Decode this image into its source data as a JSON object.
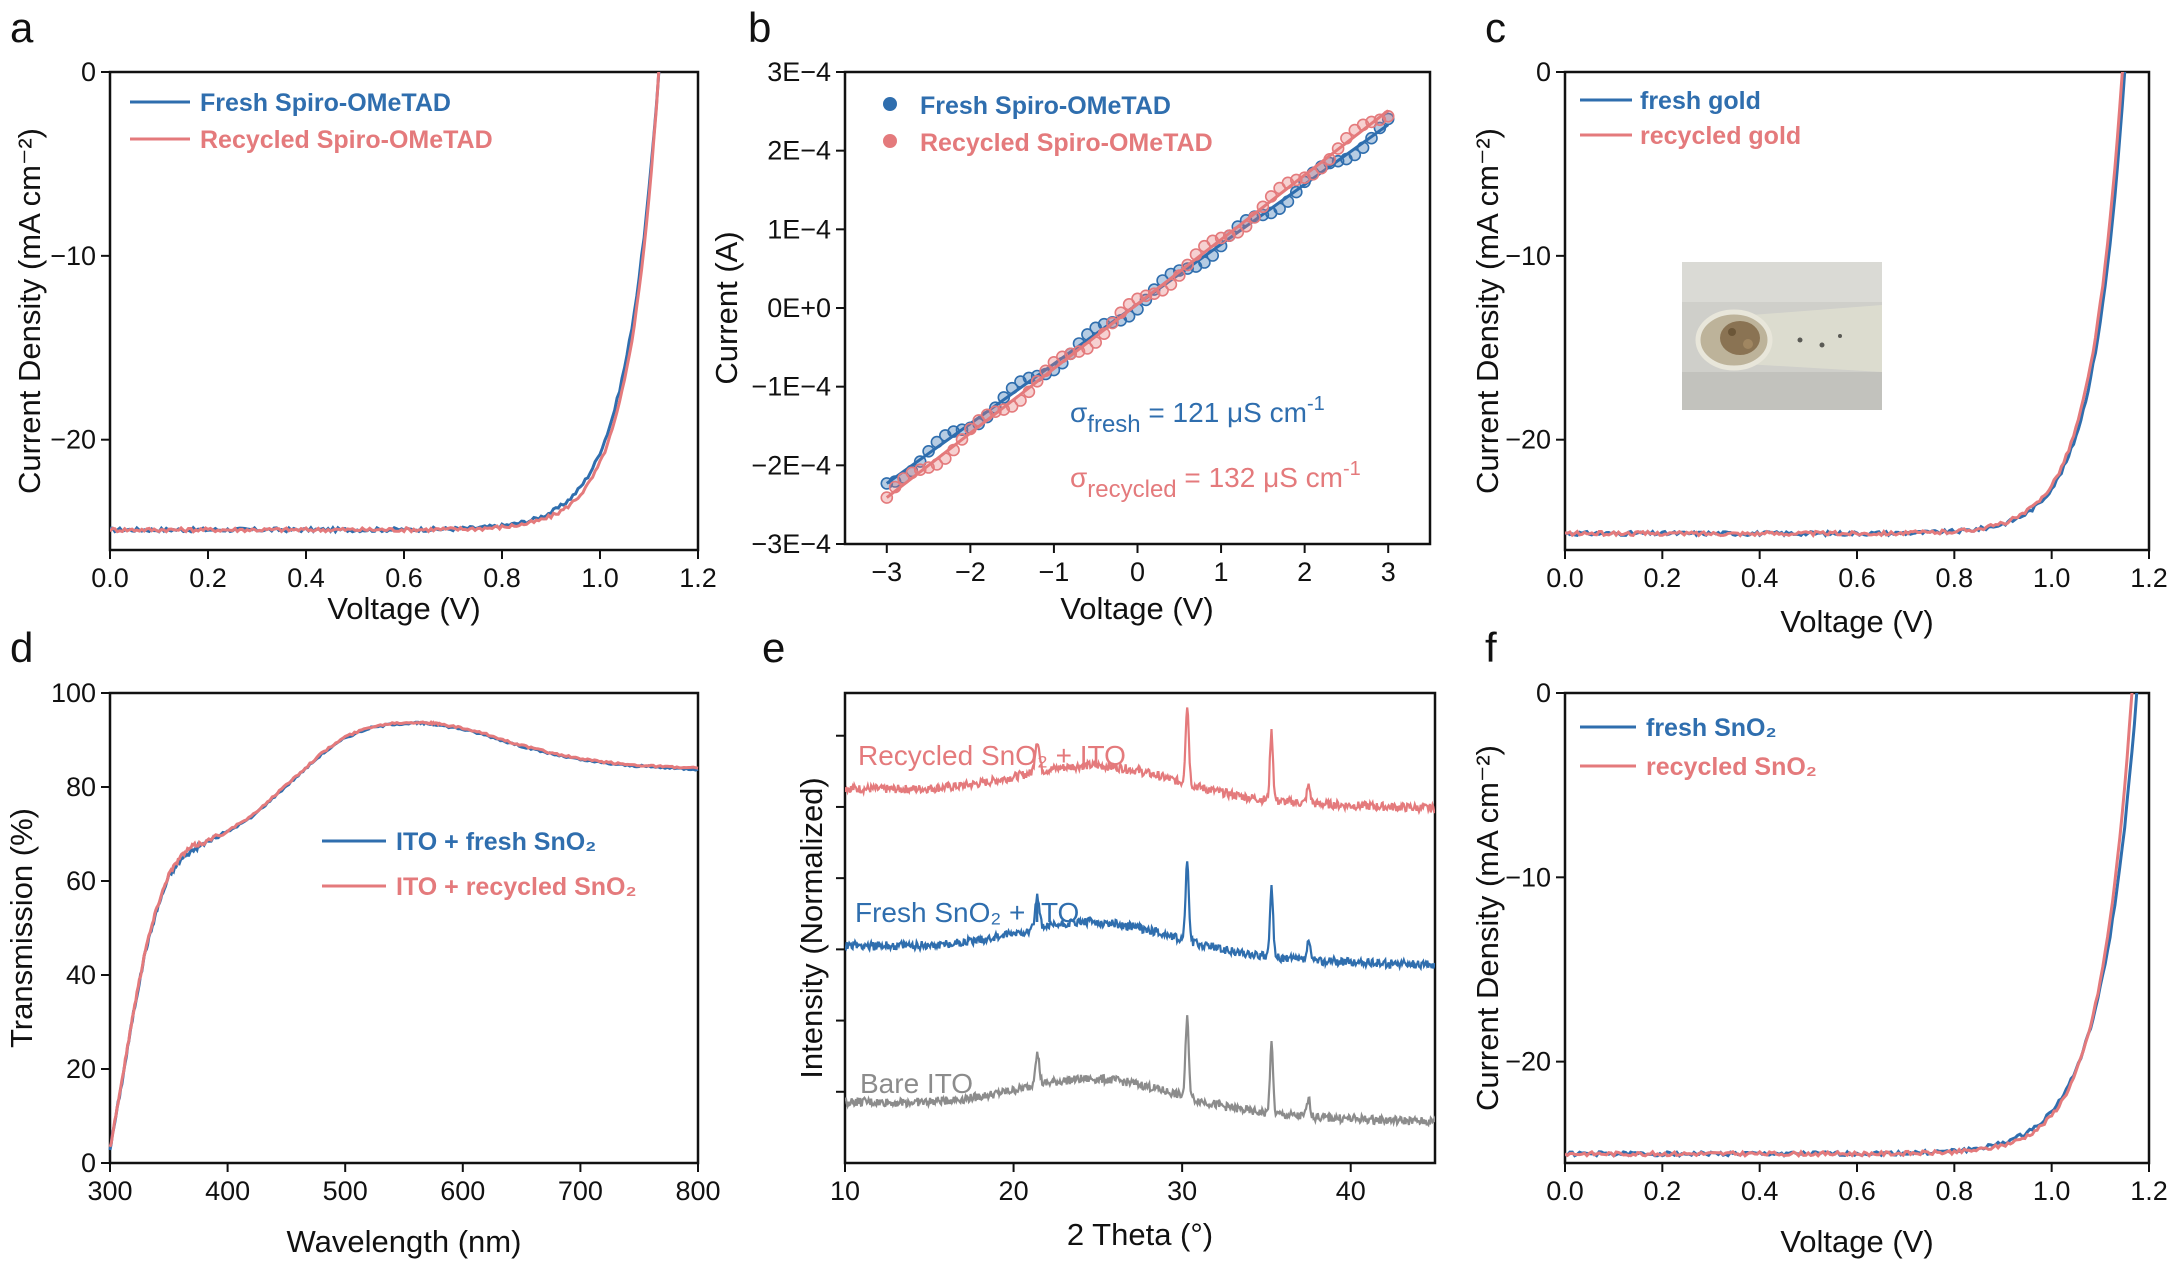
{
  "colors": {
    "fresh": "#2f6eae",
    "recycled": "#e47a7c",
    "bare": "#8c8c8c",
    "axis": "#111111"
  },
  "chart_data": [
    {
      "panel": "a",
      "type": "line",
      "xlabel": "Voltage (V)",
      "ylabel": "Current Density (mA cm⁻²)",
      "xlim": [
        0,
        1.2
      ],
      "ylim": [
        -26,
        0
      ],
      "xticks": [
        0.0,
        0.2,
        0.4,
        0.6,
        0.8,
        1.0,
        1.2
      ],
      "xtick_labels": [
        "0.0",
        "0.2",
        "0.4",
        "0.6",
        "0.8",
        "1.0",
        "1.2"
      ],
      "yticks": [
        0,
        -10,
        -20
      ],
      "ytick_labels": [
        "0",
        "−10",
        "−20"
      ],
      "legend": "top-left",
      "series": [
        {
          "name": "Fresh Spiro-OMeTAD",
          "color": "fresh",
          "jsc": 24.9,
          "voc": 1.12,
          "v0": 0.0675
        },
        {
          "name": "Recycled Spiro-OMeTAD",
          "color": "recycled",
          "jsc": 24.9,
          "voc": 1.12,
          "v0": 0.0625
        }
      ]
    },
    {
      "panel": "b",
      "type": "scatter",
      "xlabel": "Voltage (V)",
      "ylabel": "Current (A)",
      "xlim": [
        -3.5,
        3.5
      ],
      "ylim": [
        -0.0003,
        0.0003
      ],
      "xticks": [
        -3,
        -2,
        -1,
        0,
        1,
        2,
        3
      ],
      "xtick_labels": [
        "−3",
        "−2",
        "−1",
        "0",
        "1",
        "2",
        "3"
      ],
      "yticks": [
        0.0003,
        0.0002,
        0.0001,
        0,
        -0.0001,
        -0.0002,
        -0.0003
      ],
      "ytick_labels": [
        "3E−4",
        "2E−4",
        "1E−4",
        "0E+0",
        "−1E−4",
        "−2E−4",
        "−3E−4"
      ],
      "legend": "top-left",
      "series": [
        {
          "name": "Fresh Spiro-OMeTAD",
          "color": "fresh",
          "slope": 7.6e-05,
          "intercept": 5e-06
        },
        {
          "name": "Recycled Spiro-OMeTAD",
          "color": "recycled",
          "slope": 8.2e-05,
          "intercept": 5e-06
        }
      ],
      "annotations": [
        {
          "symbol": "σ",
          "sub": "fresh",
          "text": " = 121 μS cm",
          "sup": "-1",
          "color": "fresh"
        },
        {
          "symbol": "σ",
          "sub": "recycled",
          "text": " = 132 μS cm",
          "sup": "-1",
          "color": "recycled"
        }
      ]
    },
    {
      "panel": "c",
      "type": "line",
      "xlabel": "Voltage (V)",
      "ylabel": "Current Density (mA cm⁻²)",
      "xlim": [
        0,
        1.2
      ],
      "ylim": [
        -26,
        0
      ],
      "xticks": [
        0.0,
        0.2,
        0.4,
        0.6,
        0.8,
        1.0,
        1.2
      ],
      "xtick_labels": [
        "0.0",
        "0.2",
        "0.4",
        "0.6",
        "0.8",
        "1.0",
        "1.2"
      ],
      "yticks": [
        0,
        -10,
        -20
      ],
      "ytick_labels": [
        "0",
        "−10",
        "−20"
      ],
      "legend": "top-left",
      "inset": "photo of recycled gold flakes in a vial",
      "series": [
        {
          "name": "fresh gold",
          "color": "fresh",
          "jsc": 25.1,
          "voc": 1.15,
          "v0": 0.0645
        },
        {
          "name": "recycled gold",
          "color": "recycled",
          "jsc": 25.1,
          "voc": 1.145,
          "v0": 0.0645
        }
      ]
    },
    {
      "panel": "d",
      "type": "line",
      "xlabel": "Wavelength (nm)",
      "ylabel": "Transmission (%)",
      "xlim": [
        300,
        800
      ],
      "ylim": [
        0,
        100
      ],
      "xticks": [
        300,
        400,
        500,
        600,
        700,
        800
      ],
      "xtick_labels": [
        "300",
        "400",
        "500",
        "600",
        "700",
        "800"
      ],
      "yticks": [
        0,
        20,
        40,
        60,
        80,
        100
      ],
      "ytick_labels": [
        "0",
        "20",
        "40",
        "60",
        "80",
        "100"
      ],
      "legend": "center-right",
      "x": [
        300,
        310,
        320,
        330,
        340,
        350,
        360,
        370,
        380,
        400,
        420,
        440,
        460,
        480,
        500,
        520,
        540,
        560,
        570,
        580,
        600,
        620,
        640,
        660,
        680,
        700,
        720,
        740,
        760,
        780,
        800
      ],
      "series": [
        {
          "name": "ITO + fresh SnO₂",
          "color": "fresh",
          "values": [
            3,
            17,
            32,
            45,
            54,
            61,
            64.5,
            66.5,
            68,
            70.5,
            73.5,
            78,
            82.5,
            87,
            90.5,
            92.5,
            93.4,
            93.6,
            93.5,
            93.2,
            92.3,
            91,
            89.4,
            88,
            86.8,
            85.8,
            85.1,
            84.6,
            84.3,
            84,
            83.8
          ]
        },
        {
          "name": "ITO + recycled SnO₂",
          "color": "recycled",
          "values": [
            3.2,
            17.3,
            32.3,
            45.4,
            54.5,
            61.5,
            65.2,
            67.4,
            68.2,
            70.7,
            73.7,
            78.2,
            82.7,
            87.2,
            90.7,
            92.7,
            93.6,
            93.8,
            93.7,
            93.4,
            92.5,
            91.2,
            89.6,
            88.2,
            87,
            86,
            85.3,
            84.8,
            84.5,
            84.2,
            84
          ]
        }
      ]
    },
    {
      "panel": "e",
      "type": "line",
      "xlabel": "2 Theta (°)",
      "ylabel": "Intensity (Normalized)",
      "xlim": [
        10,
        45
      ],
      "ylim": [
        0,
        3.3
      ],
      "xticks": [
        10,
        20,
        30,
        40
      ],
      "xtick_labels": [
        "10",
        "20",
        "30",
        "40"
      ],
      "peaks_2theta": [
        21.4,
        30.3,
        35.3,
        37.5
      ],
      "series": [
        {
          "name": "Recycled SnO₂ + ITO",
          "color": "recycled",
          "offset": 2.2
        },
        {
          "name": "Fresh SnO₂ + ITO",
          "color": "fresh",
          "offset": 1.1
        },
        {
          "name": "Bare ITO",
          "color": "bare",
          "offset": 0.0
        }
      ]
    },
    {
      "panel": "f",
      "type": "line",
      "xlabel": "Voltage (V)",
      "ylabel": "Current Density (mA cm⁻²)",
      "xlim": [
        0,
        1.2
      ],
      "ylim": [
        -25.5,
        0
      ],
      "xticks": [
        0.0,
        0.2,
        0.4,
        0.6,
        0.8,
        1.0,
        1.2
      ],
      "xtick_labels": [
        "0.0",
        "0.2",
        "0.4",
        "0.6",
        "0.8",
        "1.0",
        "1.2"
      ],
      "yticks": [
        0,
        -10,
        -20
      ],
      "ytick_labels": [
        "0",
        "−10",
        "−20"
      ],
      "legend": "top-left",
      "series": [
        {
          "name": "fresh SnO₂",
          "color": "fresh",
          "jsc": 25.0,
          "voc": 1.175,
          "v0": 0.0735
        },
        {
          "name": "recycled SnO₂",
          "color": "recycled",
          "jsc": 25.0,
          "voc": 1.165,
          "v0": 0.0665
        }
      ]
    }
  ]
}
